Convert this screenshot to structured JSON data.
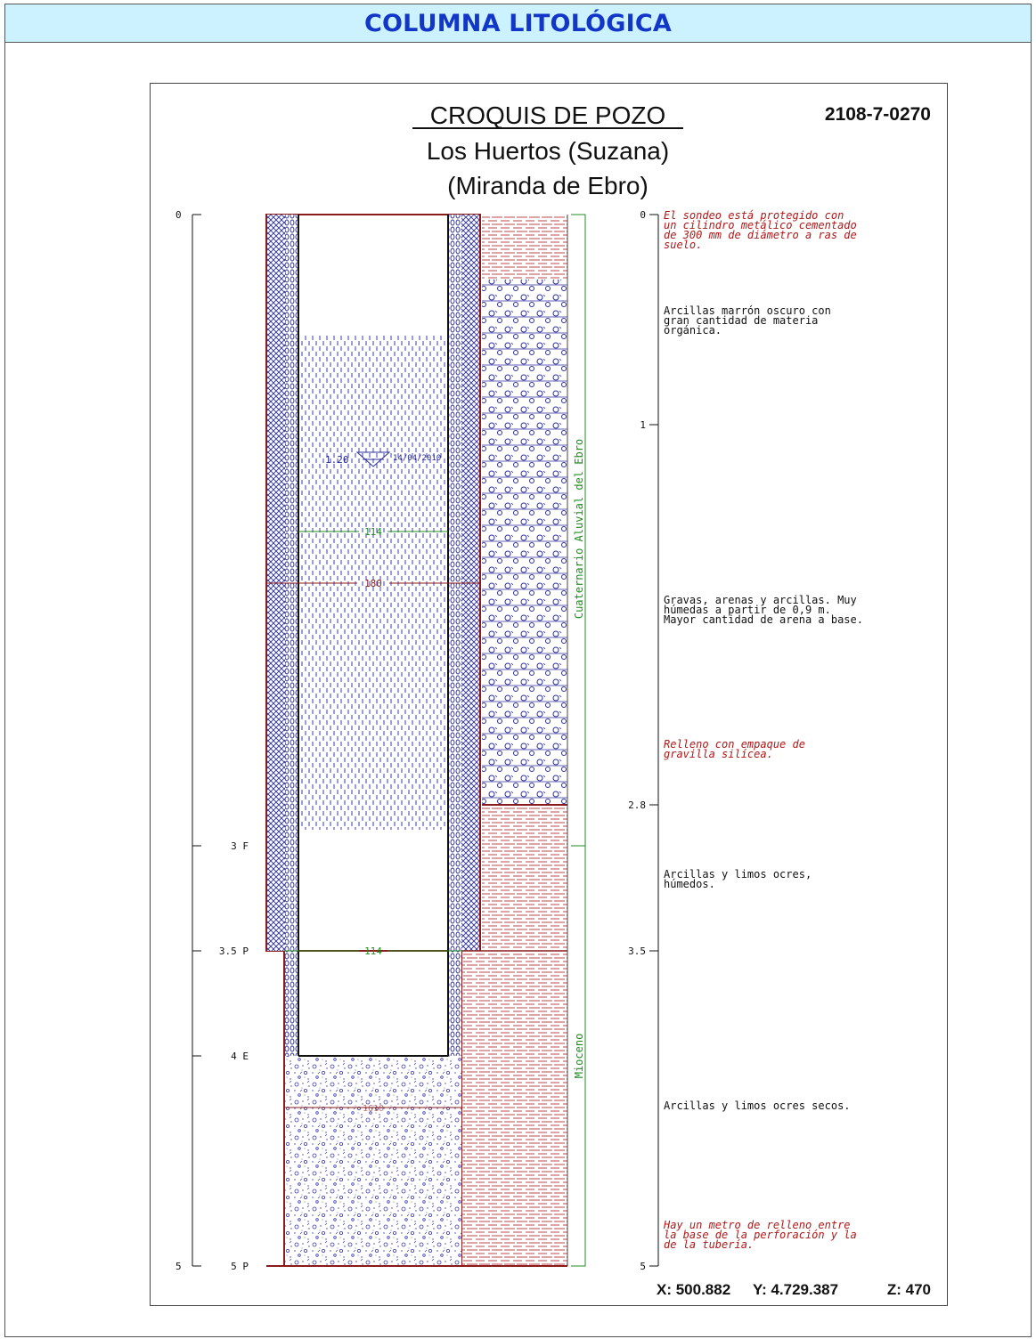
{
  "header": {
    "title": "COLUMNA LITOLÓGICA"
  },
  "sketch": {
    "title": "CROQUIS DE POZO",
    "subtitle": "Los Huertos (Suzana)",
    "location": "(Miranda de Ebro)",
    "code": "2108-7-0270"
  },
  "depth_scale": {
    "left_ticks": [
      "0",
      "5"
    ],
    "right_ticks": [
      "0",
      "1",
      "2.8",
      "3.5",
      "5"
    ]
  },
  "construction_marks": [
    {
      "label": "3 F",
      "depth": 3.0
    },
    {
      "label": "3.5 P",
      "depth": 3.5
    },
    {
      "label": "4 E",
      "depth": 4.0
    },
    {
      "label": "5 P",
      "depth": 5.0
    }
  ],
  "diameters": {
    "casing_inner": "114",
    "casing_outer": "180",
    "drill_lower": "114",
    "hidden_label": "1610"
  },
  "water_level": {
    "depth_label": "1.20",
    "date": "14/04/2010"
  },
  "formations": [
    {
      "name": "Cuaternario Aluvial del Ebro",
      "top": 0,
      "bottom": 3.0
    },
    {
      "name": "Mioceno",
      "top": 3.0,
      "bottom": 5.0
    }
  ],
  "notes": [
    {
      "text": "El sondeo está protegido con un cilindro metálico cementado de 300 mm de diámetro a ras de suelo.",
      "lines": [
        "El sondeo está protegido con",
        "un cilindro metálico cementado",
        "de 300 mm de diámetro a ras de",
        "suelo."
      ],
      "style": "red-italic"
    },
    {
      "text": "Arcillas marrón oscuro con gran cantidad de materia orgánica.",
      "lines": [
        "Arcillas marrón oscuro con",
        "gran cantidad de materia",
        "orgánica."
      ],
      "style": "black"
    },
    {
      "text": "Gravas, arenas y arcillas. Muy húmedas a partir de 0,9 m. Mayor cantidad de arena a base.",
      "lines": [
        "Gravas, arenas y arcillas. Muy",
        "húmedas a partir de 0,9 m.",
        "Mayor cantidad de arena a base."
      ],
      "style": "black"
    },
    {
      "text": "Relleno con empaque de gravilla silícea.",
      "lines": [
        "Relleno con empaque de",
        "gravilla silícea."
      ],
      "style": "red-italic"
    },
    {
      "text": "Arcillas y limos ocres, húmedos.",
      "lines": [
        "Arcillas y limos ocres,",
        "húmedos."
      ],
      "style": "black"
    },
    {
      "text": "Arcillas y limos ocres secos.",
      "lines": [
        "Arcillas y limos ocres secos."
      ],
      "style": "black"
    },
    {
      "text": "Hay un metro de relleno entre la base de la perforación y la de la tubería.",
      "lines": [
        "Hay un metro de relleno entre",
        "la base de la perforación y la",
        "de la tubería."
      ],
      "style": "red-italic"
    }
  ],
  "coordinates": {
    "x": "X: 500.882",
    "y": "Y: 4.729.387",
    "z": "Z: 470"
  },
  "colors": {
    "header_bg": "#ccf2ff",
    "title_blue": "#1236c8",
    "pattern_blue": "#1e2aa0",
    "red": "#b01818",
    "green": "#1f8c1f"
  }
}
